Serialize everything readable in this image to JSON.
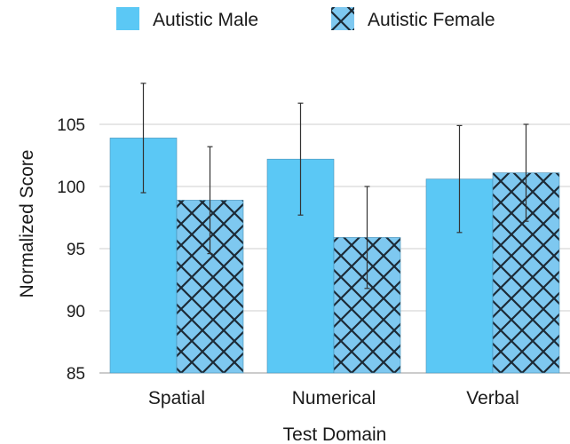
{
  "chart_data": {
    "type": "bar",
    "title": "",
    "xlabel": "Test Domain",
    "ylabel": "Normalized Score",
    "categories": [
      "Spatial",
      "Numerical",
      "Verbal"
    ],
    "ylim": [
      85,
      110
    ],
    "yticks": [
      85,
      90,
      95,
      100,
      105
    ],
    "grid": true,
    "legend_position": "top",
    "series": [
      {
        "name": "Autistic Male",
        "pattern": "solid",
        "color": "#5bc8f5",
        "values": [
          103.9,
          102.2,
          100.6
        ],
        "error_low": [
          99.5,
          97.7,
          96.3
        ],
        "error_high": [
          108.3,
          106.7,
          104.9
        ]
      },
      {
        "name": "Autistic Female",
        "pattern": "crosshatch",
        "color": "#7ec8f0",
        "values": [
          98.9,
          95.9,
          101.1
        ],
        "error_low": [
          94.6,
          91.8,
          97.2
        ],
        "error_high": [
          103.2,
          100.0,
          105.0
        ]
      }
    ]
  }
}
